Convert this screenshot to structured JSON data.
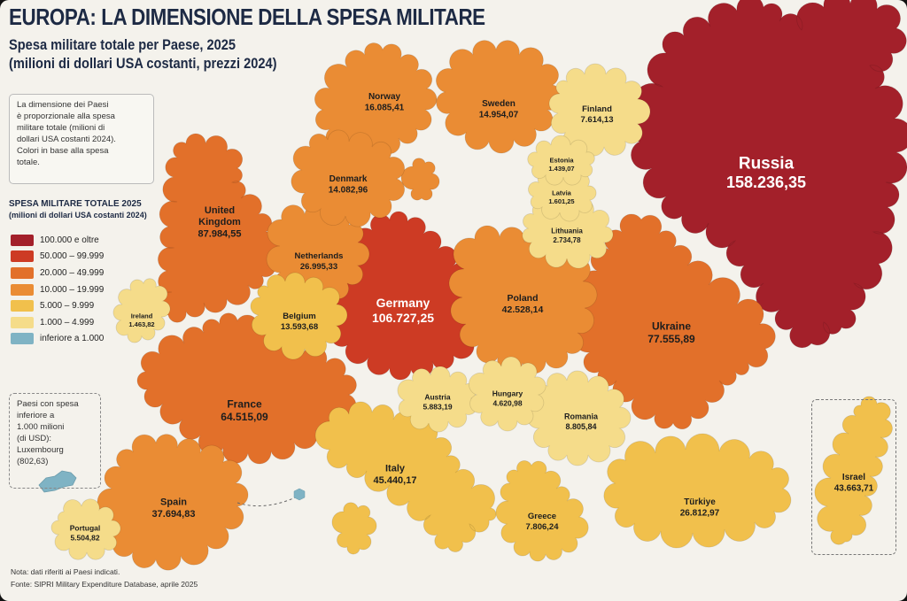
{
  "title": "EUROPA: LA DIMENSIONE DELLA SPESA MILITARE",
  "subtitle_line1": "Spesa militare totale per Paese, 2025",
  "subtitle_line2": "(milioni di dollari USA costanti, prezzi 2024)",
  "info_box": {
    "lines": [
      "La dimensione dei Paesi",
      "è proporzionale alla spesa",
      "militare totale (milioni di",
      "dollari USA costanti 2024).",
      "Colori in base alla spesa",
      "totale."
    ]
  },
  "legend": {
    "title_line1": "SPESA MILITARE TOTALE 2025",
    "title_line2": "(milioni di dollari USA costanti 2024)",
    "items": [
      {
        "label": "100.000 e oltre",
        "color": "#a3202a"
      },
      {
        "label": "50.000 – 99.999",
        "color": "#cd3b24"
      },
      {
        "label": "20.000 – 49.999",
        "color": "#e2702a"
      },
      {
        "label": "10.000 – 19.999",
        "color": "#ea8c34"
      },
      {
        "label": "5.000 – 9.999",
        "color": "#f1c04c"
      },
      {
        "label": "1.000 – 4.999",
        "color": "#f5dc8a"
      },
      {
        "label": "inferiore a 1.000",
        "color": "#7fb3c4"
      }
    ]
  },
  "luxembourg_box": {
    "lines": [
      "Paesi con spesa",
      "inferiore a",
      "1.000 milioni",
      "(di USD):",
      "Luxembourg",
      "(802,63)"
    ]
  },
  "countries": [
    {
      "name": "Russia",
      "value": "158.236,35",
      "color": "#a3202a",
      "text_color": "#ffffff"
    },
    {
      "name": "Germany",
      "value": "106.727,25",
      "color": "#cd3b24",
      "text_color": "#ffffff"
    },
    {
      "name": "United Kingdom",
      "value": "87.984,55",
      "color": "#e2702a",
      "text_color": "#1d1d1d"
    },
    {
      "name": "Ukraine",
      "value": "77.555,89",
      "color": "#e2702a",
      "text_color": "#1d1d1d"
    },
    {
      "name": "France",
      "value": "64.515,09",
      "color": "#e2702a",
      "text_color": "#1d1d1d"
    },
    {
      "name": "Italy",
      "value": "45.440,17",
      "color": "#f1c04c",
      "text_color": "#1d1d1d"
    },
    {
      "name": "Israel",
      "value": "43.663,71",
      "color": "#f1c04c",
      "text_color": "#1d1d1d"
    },
    {
      "name": "Poland",
      "value": "42.528,14",
      "color": "#ea8c34",
      "text_color": "#1d1d1d"
    },
    {
      "name": "Spain",
      "value": "37.694,83",
      "color": "#ea8c34",
      "text_color": "#1d1d1d"
    },
    {
      "name": "Netherlands",
      "value": "26.995,33",
      "color": "#ea8c34",
      "text_color": "#1d1d1d"
    },
    {
      "name": "Türkiye",
      "value": "26.812,97",
      "color": "#f1c04c",
      "text_color": "#1d1d1d"
    },
    {
      "name": "Norway",
      "value": "16.085,41",
      "color": "#ea8c34",
      "text_color": "#1d1d1d"
    },
    {
      "name": "Sweden",
      "value": "14.954,07",
      "color": "#ea8c34",
      "text_color": "#1d1d1d"
    },
    {
      "name": "Denmark",
      "value": "14.082,96",
      "color": "#ea8c34",
      "text_color": "#1d1d1d"
    },
    {
      "name": "Belgium",
      "value": "13.593,68",
      "color": "#f1c04c",
      "text_color": "#1d1d1d"
    },
    {
      "name": "Romania",
      "value": "8.805,84",
      "color": "#f5dc8a",
      "text_color": "#1d1d1d"
    },
    {
      "name": "Greece",
      "value": "7.806,24",
      "color": "#f1c04c",
      "text_color": "#1d1d1d"
    },
    {
      "name": "Finland",
      "value": "7.614,13",
      "color": "#f5dc8a",
      "text_color": "#1d1d1d"
    },
    {
      "name": "Austria",
      "value": "5.883,19",
      "color": "#f5dc8a",
      "text_color": "#1d1d1d"
    },
    {
      "name": "Portugal",
      "value": "5.504,82",
      "color": "#f5dc8a",
      "text_color": "#1d1d1d"
    },
    {
      "name": "Hungary",
      "value": "4.620,98",
      "color": "#f5dc8a",
      "text_color": "#1d1d1d"
    },
    {
      "name": "Lithuania",
      "value": "2.734,78",
      "color": "#f5dc8a",
      "text_color": "#1d1d1d"
    },
    {
      "name": "Latvia",
      "value": "1.601,25",
      "color": "#f5dc8a",
      "text_color": "#1d1d1d"
    },
    {
      "name": "Ireland",
      "value": "1.463,82",
      "color": "#f5dc8a",
      "text_color": "#1d1d1d"
    },
    {
      "name": "Estonia",
      "value": "1.439,07",
      "color": "#f5dc8a",
      "text_color": "#1d1d1d"
    },
    {
      "name": "Luxembourg",
      "value": "802,63",
      "color": "#7fb3c4"
    }
  ],
  "footnote_note": "Nota: dati riferiti ai Paesi indicati.",
  "footnote_source": "Fonte: SIPRI Military Expenditure Database, aprile 2025"
}
